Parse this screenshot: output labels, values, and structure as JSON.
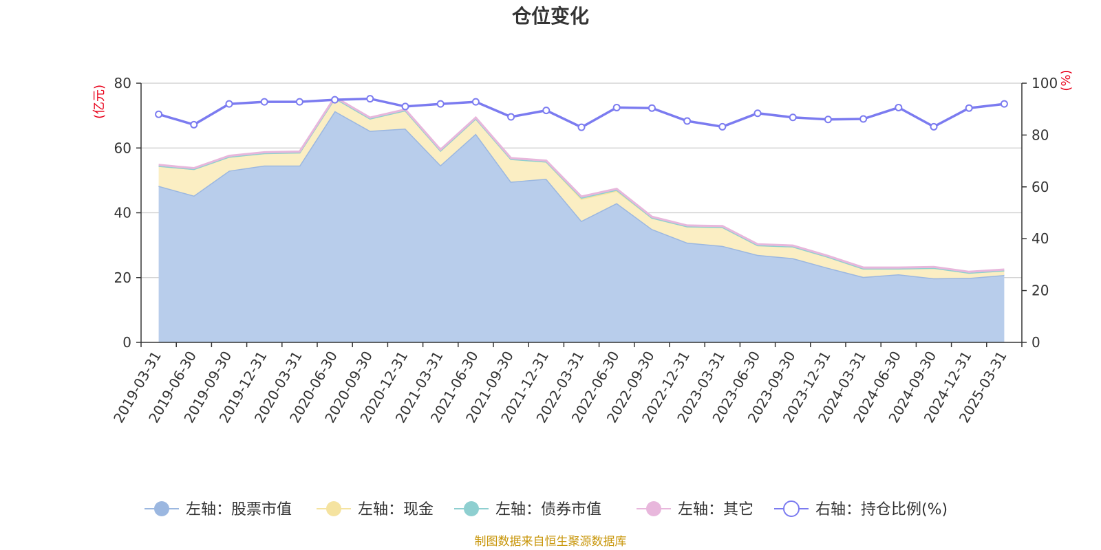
{
  "chart_data": {
    "type": "area",
    "title": "仓位变化",
    "left_axis_unit": "(亿元)",
    "right_axis_unit": "(%)",
    "left_ylim": [
      0,
      80
    ],
    "left_ticks": [
      "0",
      "20",
      "40",
      "60",
      "80"
    ],
    "right_ylim": [
      0,
      100
    ],
    "right_ticks": [
      "0",
      "20",
      "40",
      "60",
      "80",
      "100"
    ],
    "grid": true,
    "legend_position": "bottom",
    "categories": [
      "2019-03-31",
      "2019-06-30",
      "2019-09-30",
      "2019-12-31",
      "2020-03-31",
      "2020-06-30",
      "2020-09-30",
      "2020-12-31",
      "2021-03-31",
      "2021-06-30",
      "2021-09-30",
      "2021-12-31",
      "2022-03-31",
      "2022-06-30",
      "2022-09-30",
      "2022-12-31",
      "2023-03-31",
      "2023-06-30",
      "2023-09-30",
      "2023-12-31",
      "2024-03-31",
      "2024-06-30",
      "2024-09-30",
      "2024-12-31",
      "2025-03-31"
    ],
    "series": [
      {
        "name": "左轴：股票市值",
        "axis": "left",
        "stack": true,
        "color": "#9bb7e0",
        "fill": "#b8cdeb",
        "values": [
          48.3,
          45.3,
          53.0,
          54.6,
          54.6,
          71.4,
          65.3,
          66.0,
          54.7,
          64.4,
          49.6,
          50.5,
          37.5,
          43.0,
          35.0,
          30.8,
          29.8,
          27.0,
          26.0,
          23.0,
          20.2,
          21.0,
          19.8,
          19.9,
          20.8
        ]
      },
      {
        "name": "左轴：现金",
        "axis": "left",
        "stack": true,
        "color": "#f5e3a0",
        "fill": "#fbeec3",
        "values": [
          6.2,
          8.2,
          4.3,
          3.8,
          4.0,
          4.0,
          3.8,
          5.6,
          4.5,
          4.7,
          7.0,
          5.3,
          6.8,
          3.8,
          3.5,
          5.0,
          5.8,
          3.0,
          3.6,
          3.4,
          2.6,
          1.8,
          3.2,
          1.6,
          1.4
        ]
      },
      {
        "name": "左轴：债券市值",
        "axis": "left",
        "stack": true,
        "color": "#8ecfd0",
        "fill": "#a8dcdc",
        "values": [
          0,
          0,
          0,
          0,
          0,
          0,
          0,
          0,
          0,
          0,
          0,
          0,
          0.4,
          0.3,
          0,
          0,
          0,
          0,
          0,
          0,
          0,
          0,
          0,
          0,
          0
        ]
      },
      {
        "name": "左轴：其它",
        "axis": "left",
        "stack": true,
        "color": "#e8b7dc",
        "fill": "#f0c8e6",
        "values": [
          0.3,
          0.3,
          0.3,
          0.3,
          0.3,
          0.3,
          0.3,
          0.3,
          0.3,
          0.3,
          0.3,
          0.3,
          0.3,
          0.3,
          0.3,
          0.3,
          0.3,
          0.3,
          0.3,
          0.3,
          0.3,
          0.3,
          0.3,
          0.3,
          0.3
        ]
      },
      {
        "name": "右轴：持仓比例(%)",
        "axis": "right",
        "stack": false,
        "color": "#7b7bf0",
        "values": [
          88.0,
          84.0,
          92.0,
          92.8,
          92.8,
          93.6,
          94.0,
          91.0,
          92.0,
          92.8,
          87.0,
          89.5,
          83.0,
          90.6,
          90.4,
          85.4,
          83.2,
          88.4,
          86.8,
          86.0,
          86.2,
          90.6,
          83.2,
          90.4,
          92.0
        ]
      }
    ]
  },
  "source_note": "制图数据来自恒生聚源数据库"
}
